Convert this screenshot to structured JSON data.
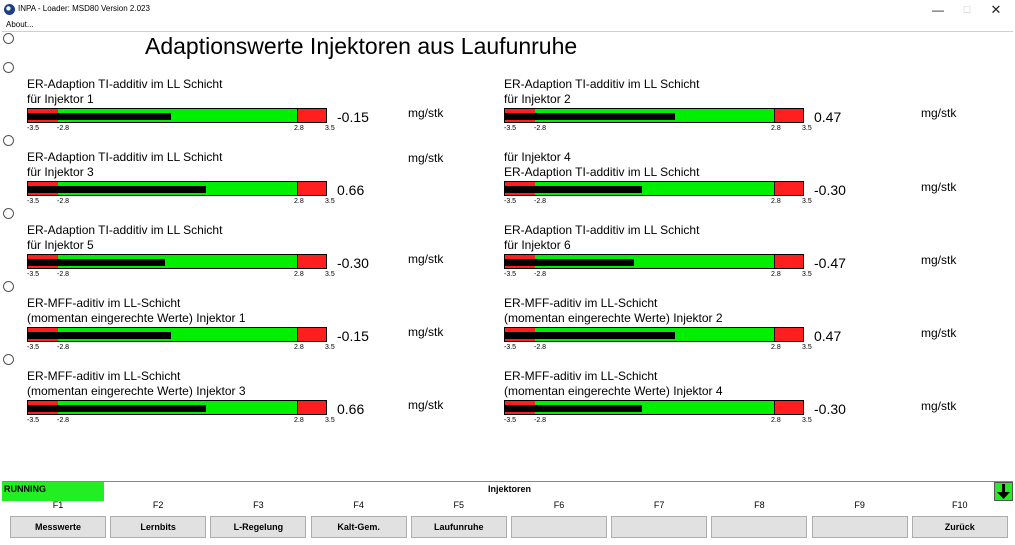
{
  "window": {
    "title": "INPA - Loader:  MSD80 Version 2.023",
    "menu_about": "About...",
    "minimize": "—",
    "maximize": "☐",
    "close": "✕"
  },
  "page_title": "Adaptionswerte Injektoren aus Laufunruhe",
  "gauge_scale": {
    "min": -3.5,
    "low": -2.8,
    "high": 2.8,
    "max": 3.5,
    "tick_labels": [
      "-3.5",
      "-2.8",
      "2.8",
      "3.5"
    ]
  },
  "gauges": [
    {
      "line1": "ER-Adaption TI-additiv im LL Schicht",
      "line2": "für Injektor 1",
      "value": -0.15,
      "value_text": "-0.15",
      "unit": "mg/stk"
    },
    {
      "line1": "ER-Adaption TI-additiv im LL Schicht",
      "line2": "für Injektor 2",
      "value": 0.47,
      "value_text": "0.47",
      "unit": "mg/stk"
    },
    {
      "line1": "ER-Adaption TI-additiv im LL Schicht",
      "line2": "für Injektor 3",
      "value": 0.66,
      "value_text": "0.66",
      "unit": "mg/stk"
    },
    {
      "line1": "für Injektor 4",
      "line2": "ER-Adaption TI-additiv im LL Schicht",
      "value": -0.3,
      "value_text": "-0.30",
      "unit": "mg/stk"
    },
    {
      "line1": "ER-Adaption TI-additiv im LL Schicht",
      "line2": "für Injektor 5",
      "value": -0.3,
      "value_text": "-0.30",
      "unit": "mg/stk"
    },
    {
      "line1": "ER-Adaption TI-additiv im LL Schicht",
      "line2": "für Injektor 6",
      "value": -0.47,
      "value_text": "-0.47",
      "unit": "mg/stk"
    },
    {
      "line1": "ER-MFF-aditiv im LL-Schicht",
      "line2": "(momentan eingerechte Werte) Injektor 1",
      "value": -0.15,
      "value_text": "-0.15",
      "unit": "mg/stk"
    },
    {
      "line1": "ER-MFF-aditiv im LL-Schicht",
      "line2": "(momentan eingerechte Werte) Injektor 2",
      "value": 0.47,
      "value_text": "0.47",
      "unit": "mg/stk"
    },
    {
      "line1": "ER-MFF-aditiv im LL-Schicht",
      "line2": "(momentan eingerechte Werte) Injektor 3",
      "value": 0.66,
      "value_text": "0.66",
      "unit": "mg/stk"
    },
    {
      "line1": "ER-MFF-aditiv im LL-Schicht",
      "line2": "(momentan eingerechte Werte) Injektor 4",
      "value": -0.3,
      "value_text": "-0.30",
      "unit": "mg/stk"
    }
  ],
  "status": {
    "state": "RUNNING",
    "module": "Injektoren"
  },
  "function_keys": [
    {
      "key": "F1",
      "label": "Messwerte"
    },
    {
      "key": "F2",
      "label": "Lernbits"
    },
    {
      "key": "F3",
      "label": "L-Regelung"
    },
    {
      "key": "F4",
      "label": "Kalt-Gem."
    },
    {
      "key": "F5",
      "label": "Laufunruhe"
    },
    {
      "key": "F6",
      "label": ""
    },
    {
      "key": "F7",
      "label": ""
    },
    {
      "key": "F8",
      "label": ""
    },
    {
      "key": "F9",
      "label": ""
    },
    {
      "key": "F10",
      "label": "Zurück"
    }
  ],
  "colors": {
    "gauge_ok": "#00ee00",
    "gauge_limit": "#ff1f1f",
    "running": "#22ee22"
  }
}
